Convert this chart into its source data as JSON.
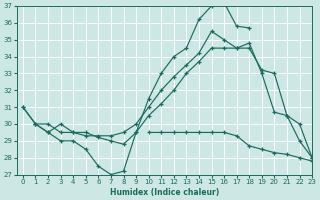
{
  "background_color": "#cde8e4",
  "grid_color": "#ffffff",
  "line_color": "#1a6b5e",
  "xlabel": "Humidex (Indice chaleur)",
  "ylim": [
    27,
    37
  ],
  "xlim": [
    -0.5,
    23
  ],
  "yticks": [
    27,
    28,
    29,
    30,
    31,
    32,
    33,
    34,
    35,
    36,
    37
  ],
  "xticks": [
    0,
    1,
    2,
    3,
    4,
    5,
    6,
    7,
    8,
    9,
    10,
    11,
    12,
    13,
    14,
    15,
    16,
    17,
    18,
    19,
    20,
    21,
    22,
    23
  ],
  "line1_x": [
    0,
    1,
    2,
    3,
    4,
    5,
    6,
    7,
    8,
    9,
    10,
    11,
    12,
    13,
    14,
    15,
    16,
    17,
    18
  ],
  "line1_y": [
    31,
    30,
    29.5,
    29,
    29,
    28.5,
    27.5,
    27.0,
    27.2,
    29.5,
    31.5,
    33.0,
    34.0,
    34.5,
    36.2,
    37.0,
    37.2,
    35.8,
    35.7
  ],
  "line2_x": [
    0,
    1,
    2,
    3,
    4,
    5,
    6,
    7,
    8,
    9,
    10,
    11,
    12,
    13,
    14,
    15,
    16,
    17,
    18,
    19,
    20,
    21,
    22,
    23
  ],
  "line2_y": [
    31,
    30,
    30,
    29.5,
    29.5,
    29.3,
    29.3,
    29.3,
    29.5,
    30.0,
    31.0,
    32.0,
    32.8,
    33.5,
    34.2,
    35.5,
    35.0,
    34.5,
    34.8,
    33.0,
    30.7,
    30.5,
    30.0,
    28.0
  ],
  "line3_x": [
    10,
    11,
    12,
    13,
    14,
    15,
    16,
    17,
    18,
    19,
    20,
    21,
    22,
    23
  ],
  "line3_y": [
    29.5,
    29.5,
    29.5,
    29.5,
    29.5,
    29.5,
    29.5,
    29.3,
    28.7,
    28.5,
    28.3,
    28.2,
    28.0,
    27.8
  ],
  "line4_x": [
    1,
    2,
    3,
    4,
    5,
    6,
    7,
    8,
    9,
    10,
    11,
    12,
    13,
    14,
    15,
    16,
    17,
    18,
    19,
    20,
    21,
    22,
    23
  ],
  "line4_y": [
    30,
    29.5,
    30,
    29.5,
    29.5,
    29.2,
    29.0,
    28.8,
    29.5,
    30.5,
    31.2,
    32.0,
    33.0,
    33.7,
    34.5,
    34.5,
    34.5,
    34.5,
    33.2,
    33.0,
    30.5,
    29.0,
    28.0
  ]
}
